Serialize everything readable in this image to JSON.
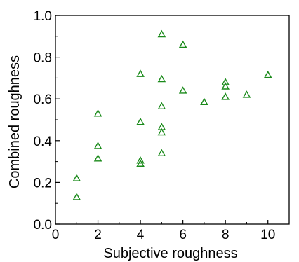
{
  "chart_data": {
    "type": "scatter",
    "title": "",
    "xlabel": "Subjective roughness",
    "ylabel": "Combined roughness",
    "xlim": [
      0,
      11
    ],
    "ylim": [
      0,
      1.0
    ],
    "xticks": [
      0,
      2,
      4,
      6,
      8,
      10
    ],
    "yticks": [
      0.0,
      0.2,
      0.4,
      0.6,
      0.8,
      1.0
    ],
    "ytick_labels": [
      "0.0",
      "0.2",
      "0.4",
      "0.6",
      "0.8",
      "1.0"
    ],
    "xtick_labels": [
      "0",
      "2",
      "4",
      "6",
      "8",
      "10"
    ],
    "grid": false,
    "marker": "open-triangle",
    "marker_color": "#1a8a1a",
    "series": [
      {
        "points": [
          {
            "x": 1,
            "y": 0.22
          },
          {
            "x": 1,
            "y": 0.13
          },
          {
            "x": 2,
            "y": 0.53
          },
          {
            "x": 2,
            "y": 0.375
          },
          {
            "x": 2,
            "y": 0.315
          },
          {
            "x": 4,
            "y": 0.72
          },
          {
            "x": 4,
            "y": 0.49
          },
          {
            "x": 4,
            "y": 0.305
          },
          {
            "x": 4,
            "y": 0.29
          },
          {
            "x": 5,
            "y": 0.91
          },
          {
            "x": 5,
            "y": 0.695
          },
          {
            "x": 5,
            "y": 0.565
          },
          {
            "x": 5,
            "y": 0.465
          },
          {
            "x": 5,
            "y": 0.44
          },
          {
            "x": 5,
            "y": 0.34
          },
          {
            "x": 6,
            "y": 0.86
          },
          {
            "x": 6,
            "y": 0.64
          },
          {
            "x": 7,
            "y": 0.585
          },
          {
            "x": 8,
            "y": 0.68
          },
          {
            "x": 8,
            "y": 0.66
          },
          {
            "x": 8,
            "y": 0.61
          },
          {
            "x": 9,
            "y": 0.62
          },
          {
            "x": 10,
            "y": 0.715
          }
        ]
      }
    ]
  }
}
